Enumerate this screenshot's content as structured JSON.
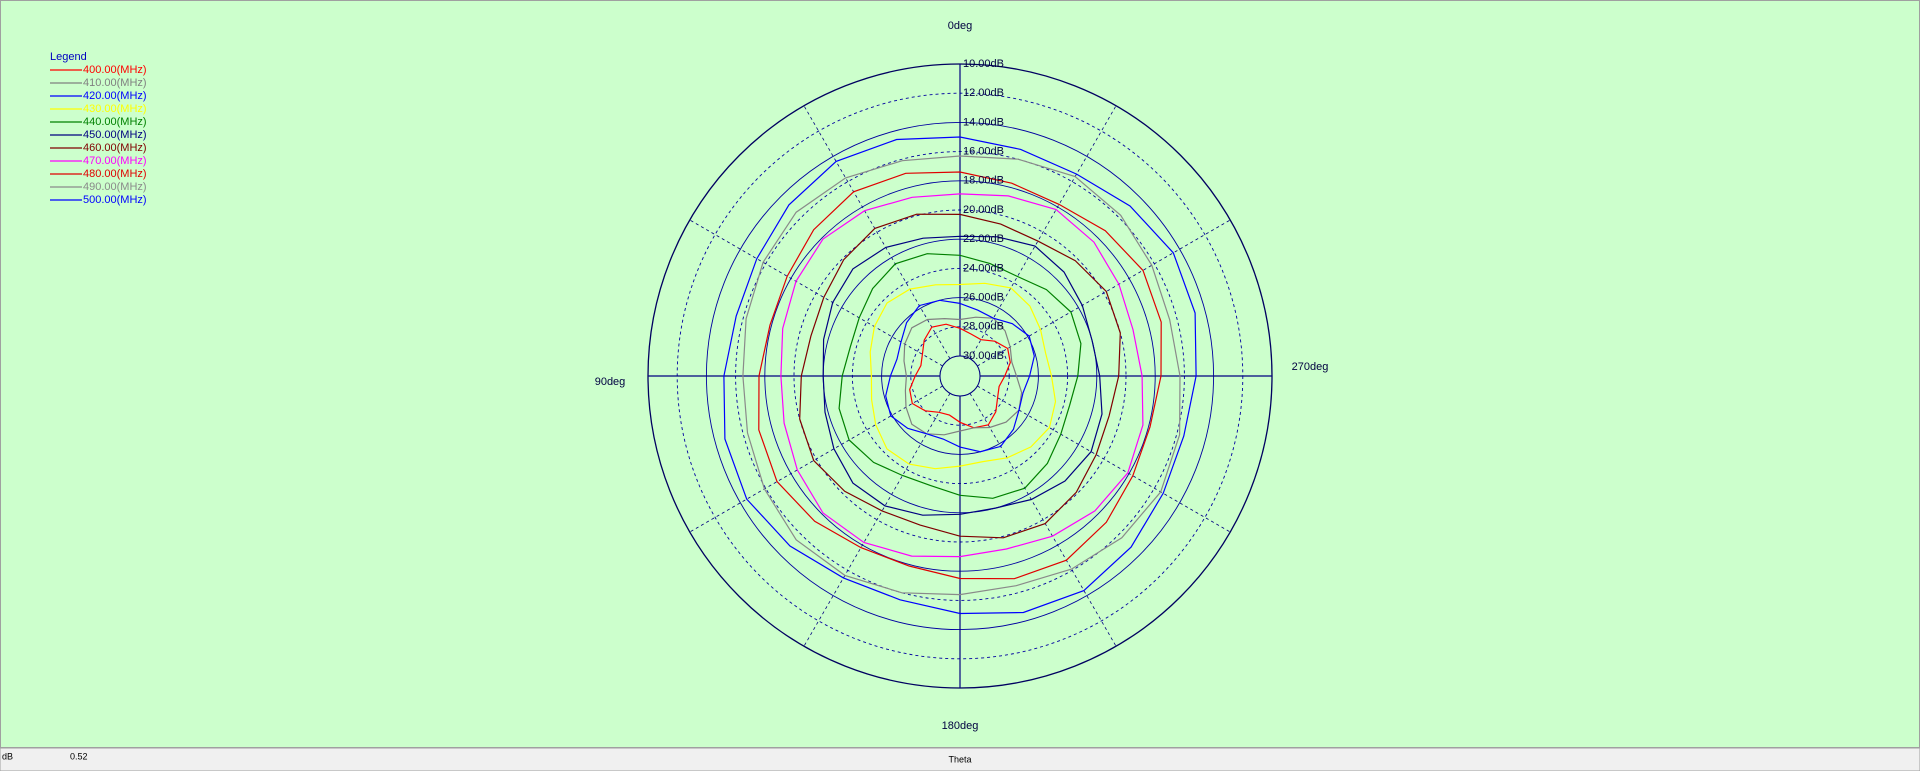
{
  "chart_data": {
    "type": "polar",
    "legend_title": "Legend",
    "legend": "upper left",
    "theta": [
      0,
      15,
      30,
      45,
      60,
      75,
      90,
      105,
      120,
      135,
      150,
      165,
      180,
      195,
      210,
      225,
      240,
      255,
      270,
      285,
      300,
      315,
      330,
      345
    ],
    "thetaticks": [
      {
        "value": 0,
        "label": "0deg"
      },
      {
        "value": 90,
        "label": "90deg"
      },
      {
        "value": 180,
        "label": "180deg"
      },
      {
        "value": 270,
        "label": "270deg"
      }
    ],
    "rlim": [
      30,
      10
    ],
    "rticks": [
      {
        "value": 10,
        "label": "10.00dB"
      },
      {
        "value": 12,
        "label": "12.00dB"
      },
      {
        "value": 14,
        "label": "14.00dB"
      },
      {
        "value": 16,
        "label": "16.00dB"
      },
      {
        "value": 18,
        "label": "18.00dB"
      },
      {
        "value": 20,
        "label": "20.00dB"
      },
      {
        "value": 22,
        "label": "22.00dB"
      },
      {
        "value": 24,
        "label": "24.00dB"
      },
      {
        "value": 26,
        "label": "26.00dB"
      },
      {
        "value": 28,
        "label": "28.00dB"
      },
      {
        "value": 30,
        "label": "30.00dB"
      }
    ],
    "grid": true,
    "series": [
      {
        "name": "400.00(MHz)",
        "color": "#ff0000",
        "values": [
          28.1,
          27.7,
          27.5,
          27.9,
          28.4,
          28.6,
          28.3,
          27.8,
          27.6,
          28.0,
          28.5,
          28.6,
          28.2,
          27.7,
          27.5,
          27.9,
          28.4,
          28.6,
          28.3,
          27.8,
          27.6,
          28.0,
          28.5,
          28.4
        ]
      },
      {
        "name": "410.00(MHz)",
        "color": "#808080",
        "values": [
          27.5,
          27.3,
          26.9,
          26.7,
          27.0,
          27.4,
          27.7,
          27.5,
          27.1,
          26.7,
          26.8,
          27.2,
          27.6,
          27.7,
          27.3,
          26.9,
          26.7,
          27.0,
          27.5,
          27.7,
          27.4,
          27.0,
          26.8,
          27.2
        ]
      },
      {
        "name": "420.00(MHz)",
        "color": "#0000ff",
        "values": [
          26.4,
          26.0,
          25.8,
          26.2,
          26.7,
          26.9,
          26.6,
          26.1,
          25.9,
          26.3,
          26.8,
          26.9,
          26.5,
          26.0,
          25.8,
          26.2,
          26.7,
          26.9,
          26.6,
          26.1,
          25.9,
          26.3,
          26.8,
          26.7
        ]
      },
      {
        "name": "430.00(MHz)",
        "color": "#ffff00",
        "values": [
          25.1,
          24.9,
          24.5,
          24.3,
          24.6,
          25.0,
          25.3,
          25.1,
          24.7,
          24.3,
          24.4,
          24.8,
          25.2,
          25.3,
          24.9,
          24.5,
          24.3,
          24.6,
          25.1,
          25.3,
          25.0,
          24.6,
          24.4,
          24.8
        ]
      },
      {
        "name": "440.00(MHz)",
        "color": "#008000",
        "values": [
          23.1,
          22.7,
          22.5,
          22.9,
          23.4,
          23.6,
          23.3,
          22.8,
          22.6,
          23.0,
          23.5,
          23.6,
          23.2,
          22.7,
          22.5,
          22.9,
          23.4,
          23.6,
          23.3,
          22.8,
          22.6,
          23.0,
          23.5,
          23.4
        ]
      },
      {
        "name": "450.00(MHz)",
        "color": "#000080",
        "values": [
          21.8,
          21.6,
          21.2,
          21.0,
          21.3,
          21.7,
          22.0,
          21.8,
          21.4,
          21.0,
          21.1,
          21.5,
          21.9,
          22.0,
          21.6,
          21.2,
          21.0,
          21.3,
          21.8,
          22.0,
          21.7,
          21.3,
          21.1,
          21.5
        ]
      },
      {
        "name": "460.00(MHz)",
        "color": "#800000",
        "values": [
          20.3,
          19.9,
          19.7,
          20.1,
          20.6,
          20.8,
          20.5,
          20.0,
          19.8,
          20.2,
          20.7,
          20.8,
          20.4,
          19.9,
          19.7,
          20.1,
          20.6,
          20.8,
          20.5,
          20.0,
          19.8,
          20.2,
          20.7,
          20.6
        ]
      },
      {
        "name": "470.00(MHz)",
        "color": "#ff00ff",
        "values": [
          18.9,
          18.7,
          18.3,
          18.1,
          18.4,
          18.8,
          19.1,
          18.9,
          18.5,
          18.1,
          18.2,
          18.6,
          19.0,
          19.1,
          18.7,
          18.3,
          18.1,
          18.4,
          18.9,
          19.1,
          18.8,
          18.4,
          18.2,
          18.6
        ]
      },
      {
        "name": "480.00(MHz)",
        "color": "#e00000",
        "values": [
          17.4,
          17.0,
          16.8,
          17.2,
          17.7,
          17.9,
          17.6,
          17.1,
          16.9,
          17.3,
          17.8,
          17.9,
          17.5,
          17.0,
          16.8,
          17.2,
          17.7,
          17.9,
          17.6,
          17.1,
          16.9,
          17.3,
          17.8,
          17.7
        ]
      },
      {
        "name": "490.00(MHz)",
        "color": "#8a8a8a",
        "values": [
          16.3,
          16.1,
          15.7,
          15.5,
          15.8,
          16.2,
          16.5,
          16.3,
          15.9,
          15.5,
          15.6,
          16.0,
          16.4,
          16.5,
          16.1,
          15.7,
          15.5,
          15.8,
          16.3,
          16.5,
          16.2,
          15.8,
          15.6,
          16.0
        ]
      },
      {
        "name": "500.00(MHz)",
        "color": "#0000ff",
        "values": [
          15.0,
          14.6,
          14.4,
          14.8,
          15.3,
          15.5,
          15.2,
          14.7,
          14.5,
          14.9,
          15.4,
          15.5,
          15.1,
          14.6,
          14.4,
          14.8,
          15.3,
          15.5,
          15.2,
          14.7,
          14.5,
          14.9,
          15.4,
          15.3
        ]
      }
    ]
  },
  "status_bar": {
    "unit": "dB",
    "value": 0.52,
    "axis_name": "Theta"
  }
}
